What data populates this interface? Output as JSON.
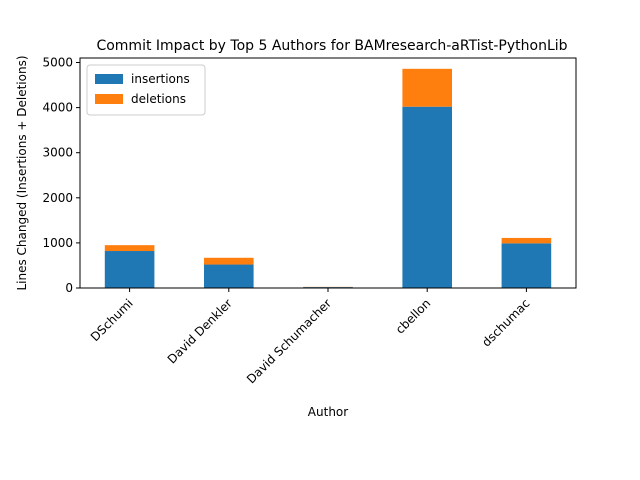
{
  "chart_data": {
    "type": "bar",
    "stacked": true,
    "title": "Commit Impact by Top 5 Authors for BAMresearch-aRTist-PythonLib",
    "xlabel": "Author",
    "ylabel": "Lines Changed (Insertions + Deletions)",
    "categories": [
      "DSchumi",
      "David Denkler",
      "David Schumacher",
      "cbellon",
      "dschumac"
    ],
    "series": [
      {
        "name": "insertions",
        "color": "#1f77b4",
        "values": [
          820,
          520,
          20,
          4020,
          990
        ]
      },
      {
        "name": "deletions",
        "color": "#ff7f0e",
        "values": [
          130,
          150,
          5,
          840,
          120
        ]
      }
    ],
    "ylim": [
      0,
      5100
    ],
    "yticks": [
      0,
      1000,
      2000,
      3000,
      4000,
      5000
    ],
    "grid": false,
    "legend_position": "top-left"
  }
}
